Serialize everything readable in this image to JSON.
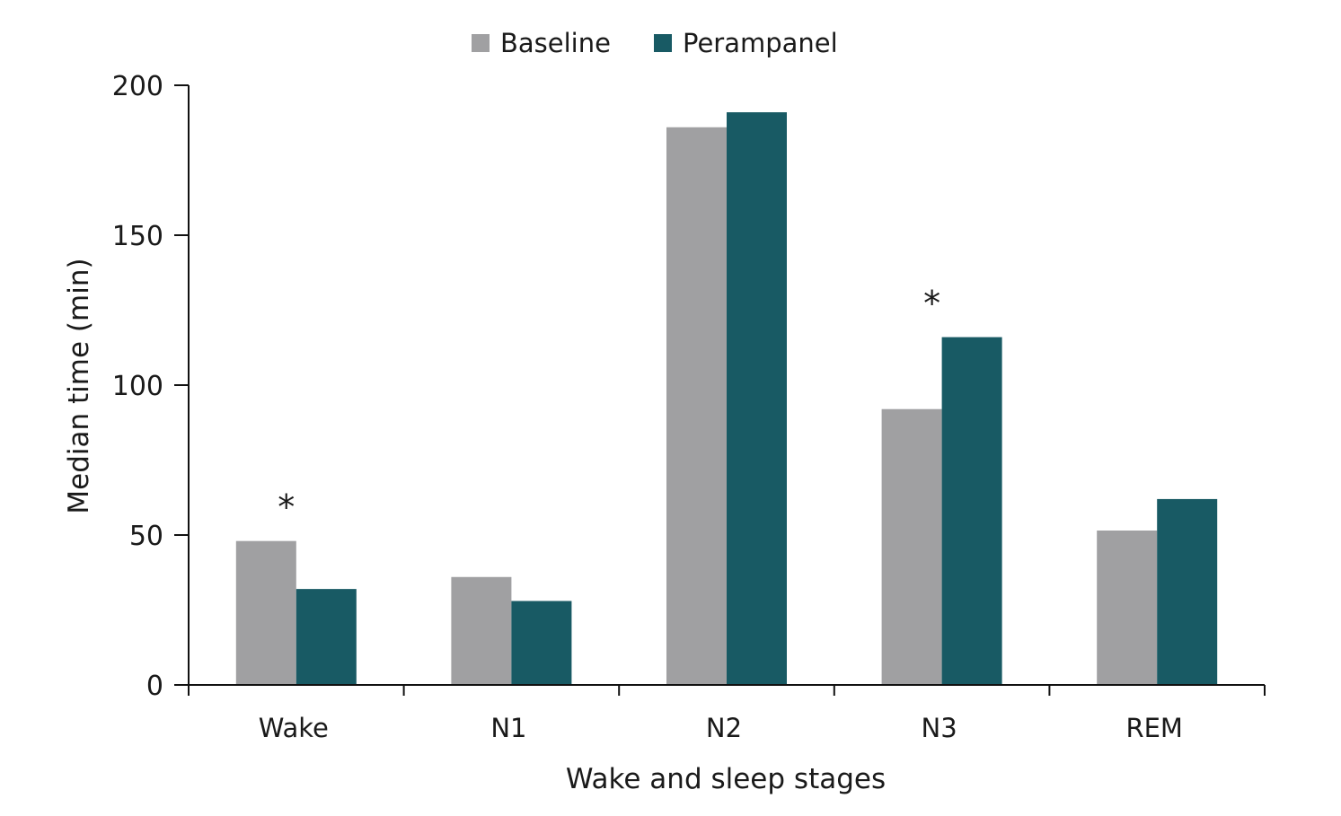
{
  "chart_data": {
    "type": "bar",
    "title": "",
    "xlabel": "Wake and sleep stages",
    "ylabel": "Median time (min)",
    "ylim": [
      0,
      200
    ],
    "yticks": [
      0,
      50,
      100,
      150,
      200
    ],
    "categories": [
      "Wake",
      "N1",
      "N2",
      "N3",
      "REM"
    ],
    "series": [
      {
        "name": "Baseline",
        "color": "#a0a0a2",
        "values": [
          48,
          36,
          186,
          92,
          51.5
        ]
      },
      {
        "name": "Perampanel",
        "color": "#185a64",
        "values": [
          32,
          28,
          191,
          116,
          62
        ]
      }
    ],
    "annotations": [
      {
        "text": "*",
        "category": "Wake",
        "y": 62
      },
      {
        "text": "*",
        "category": "N3",
        "y": 130
      }
    ],
    "legend": "top-center",
    "grid": false
  }
}
